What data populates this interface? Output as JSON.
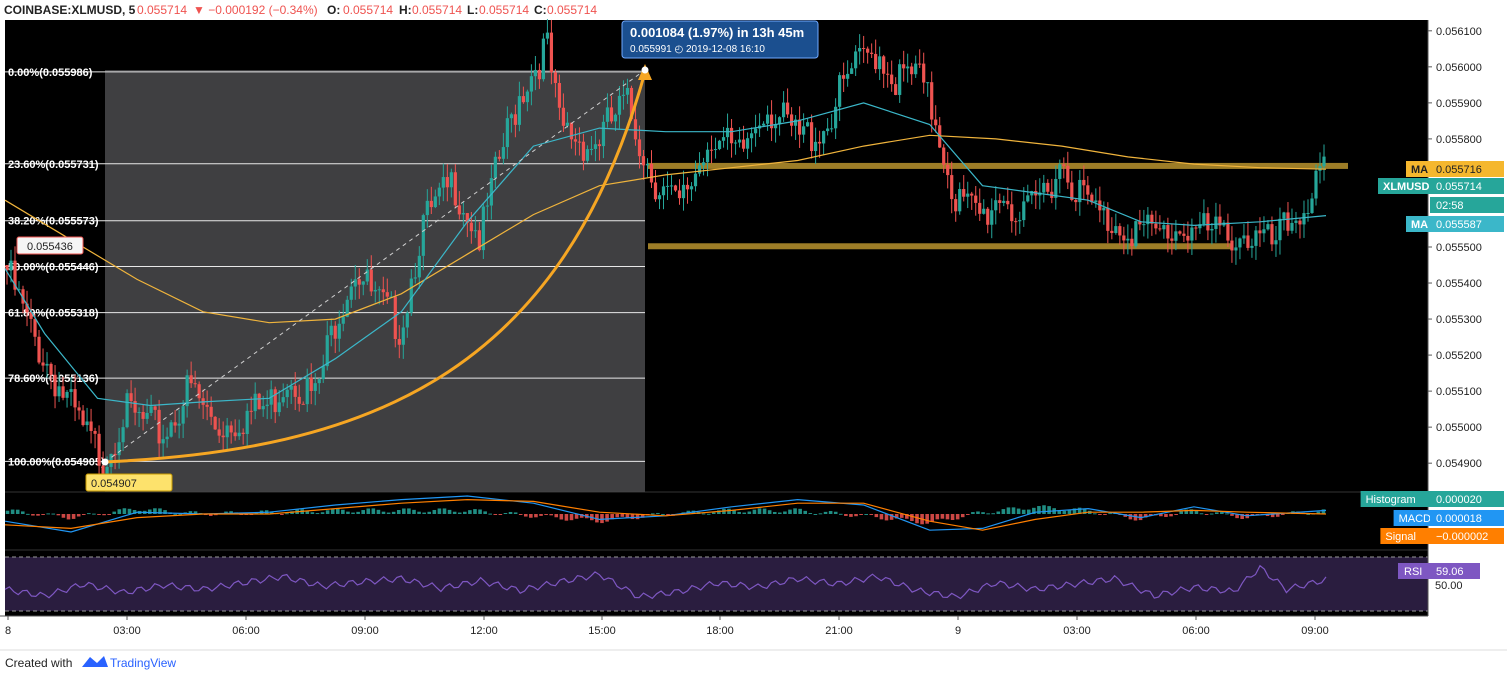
{
  "header": {
    "symbol": "COINBASE:XLMUSD, 5",
    "last": "0.055714",
    "change": "▼ −0.000192 (−0.34%)",
    "o_label": "O:",
    "o_val": "0.055714",
    "h_label": "H:",
    "h_val": "0.055714",
    "l_label": "L:",
    "l_val": "0.055714",
    "c_label": "C:",
    "c_val": "0.055714"
  },
  "footer": {
    "created_with": "Created with",
    "brand": "TradingView"
  },
  "colors": {
    "up": "#26a69a",
    "down": "#ef5350",
    "ma_slow": "#f0b43c",
    "ma_fast": "#3bb7c9",
    "fib_zone": "#4a4a4c",
    "bg": "#000000",
    "curve": "#f6a623",
    "support": "#b8932e",
    "rsi": "#7e57c2",
    "rsi_bg": "#2a1d3f",
    "macd": "#2196f3",
    "signal": "#ff7f00"
  },
  "chart_data": {
    "type": "candlestick",
    "price_range": [
      0.05482,
      0.05613
    ],
    "y_ticks": [
      "0.056100",
      "0.056000",
      "0.055900",
      "0.055800",
      "0.055500",
      "0.055400",
      "0.055300",
      "0.055200",
      "0.055100",
      "0.055000",
      "0.054900"
    ],
    "x_ticks": [
      "8",
      "03:00",
      "06:00",
      "09:00",
      "12:00",
      "15:00",
      "18:00",
      "21:00",
      "9",
      "03:00",
      "06:00",
      "09:00"
    ],
    "fib_levels": [
      {
        "label": "0.00%(0.055986)",
        "value": 0.055986
      },
      {
        "label": "23.60%(0.055731)",
        "value": 0.055731
      },
      {
        "label": "38.20%(0.055573)",
        "value": 0.055573
      },
      {
        "label": "50.00%(0.055446)",
        "value": 0.055446
      },
      {
        "label": "61.80%(0.055318)",
        "value": 0.055318
      },
      {
        "label": "78.60%(0.055136)",
        "value": 0.055136
      },
      {
        "label": "100.00%(0.054905)",
        "value": 0.054905
      }
    ],
    "support_lines": [
      0.055725,
      0.055502
    ],
    "price_path": [
      [
        0,
        0.05545
      ],
      [
        0.02,
        0.05526
      ],
      [
        0.04,
        0.05512
      ],
      [
        0.06,
        0.05498
      ],
      [
        0.075,
        0.05491
      ],
      [
        0.09,
        0.05504
      ],
      [
        0.12,
        0.05498
      ],
      [
        0.14,
        0.05511
      ],
      [
        0.16,
        0.055
      ],
      [
        0.18,
        0.05503
      ],
      [
        0.2,
        0.05506
      ],
      [
        0.215,
        0.05515
      ],
      [
        0.235,
        0.05508
      ],
      [
        0.25,
        0.0553
      ],
      [
        0.265,
        0.05545
      ],
      [
        0.28,
        0.05535
      ],
      [
        0.3,
        0.05528
      ],
      [
        0.315,
        0.05555
      ],
      [
        0.34,
        0.05568
      ],
      [
        0.36,
        0.05552
      ],
      [
        0.375,
        0.05575
      ],
      [
        0.39,
        0.05593
      ],
      [
        0.41,
        0.05606
      ],
      [
        0.42,
        0.05583
      ],
      [
        0.445,
        0.05578
      ],
      [
        0.47,
        0.0559
      ],
      [
        0.49,
        0.0557
      ],
      [
        0.51,
        0.0556
      ],
      [
        0.535,
        0.05582
      ],
      [
        0.555,
        0.05574
      ],
      [
        0.575,
        0.0559
      ],
      [
        0.6,
        0.0558
      ],
      [
        0.62,
        0.05583
      ],
      [
        0.64,
        0.05598
      ],
      [
        0.66,
        0.05605
      ],
      [
        0.675,
        0.05596
      ],
      [
        0.69,
        0.05598
      ],
      [
        0.705,
        0.05585
      ],
      [
        0.72,
        0.05563
      ],
      [
        0.74,
        0.05558
      ],
      [
        0.755,
        0.05566
      ],
      [
        0.77,
        0.05556
      ],
      [
        0.785,
        0.05565
      ],
      [
        0.8,
        0.05574
      ],
      [
        0.815,
        0.05564
      ],
      [
        0.83,
        0.05558
      ],
      [
        0.85,
        0.05556
      ],
      [
        0.87,
        0.05553
      ],
      [
        0.895,
        0.05556
      ],
      [
        0.915,
        0.05553
      ],
      [
        0.935,
        0.05554
      ],
      [
        0.96,
        0.0555
      ],
      [
        0.98,
        0.0556
      ],
      [
        1.0,
        0.05571
      ]
    ],
    "ma_slow_path": [
      [
        0,
        0.05563
      ],
      [
        0.05,
        0.05552
      ],
      [
        0.1,
        0.05541
      ],
      [
        0.15,
        0.05532
      ],
      [
        0.2,
        0.05529
      ],
      [
        0.25,
        0.0553
      ],
      [
        0.3,
        0.05537
      ],
      [
        0.35,
        0.05548
      ],
      [
        0.4,
        0.05559
      ],
      [
        0.45,
        0.05567
      ],
      [
        0.5,
        0.0557
      ],
      [
        0.55,
        0.05572
      ],
      [
        0.6,
        0.05574
      ],
      [
        0.65,
        0.05578
      ],
      [
        0.7,
        0.05581
      ],
      [
        0.75,
        0.0558
      ],
      [
        0.8,
        0.05578
      ],
      [
        0.85,
        0.05575
      ],
      [
        0.9,
        0.05573
      ],
      [
        0.95,
        0.05572
      ],
      [
        1.0,
        0.055716
      ]
    ],
    "ma_fast_path": [
      [
        0,
        0.05544
      ],
      [
        0.03,
        0.05526
      ],
      [
        0.07,
        0.05508
      ],
      [
        0.11,
        0.05506
      ],
      [
        0.15,
        0.05507
      ],
      [
        0.2,
        0.05508
      ],
      [
        0.25,
        0.05519
      ],
      [
        0.3,
        0.05532
      ],
      [
        0.35,
        0.05557
      ],
      [
        0.4,
        0.05578
      ],
      [
        0.45,
        0.05583
      ],
      [
        0.5,
        0.05582
      ],
      [
        0.55,
        0.05582
      ],
      [
        0.6,
        0.05585
      ],
      [
        0.65,
        0.0559
      ],
      [
        0.7,
        0.05584
      ],
      [
        0.74,
        0.05567
      ],
      [
        0.78,
        0.05565
      ],
      [
        0.82,
        0.05563
      ],
      [
        0.86,
        0.05557
      ],
      [
        0.9,
        0.05556
      ],
      [
        0.95,
        0.05557
      ],
      [
        1.0,
        0.055587
      ]
    ],
    "measure": {
      "text": "0.001084 (1.97%) in 13h 45m",
      "subtext": "0.055991 ◴ 2019-12-08  16:10"
    },
    "price_callouts": {
      "start": "0.055436",
      "low": "0.054907"
    },
    "axis_labels": [
      {
        "tag": "MA",
        "value": "0.055716"
      },
      {
        "tag": "XLMUSD",
        "value": "0.055714"
      },
      {
        "tag": "",
        "value": "02:58"
      },
      {
        "tag": "MA",
        "value": "0.055587"
      }
    ],
    "macd_labels": [
      {
        "tag": "Histogram",
        "value": "0.000020"
      },
      {
        "tag": "MACD",
        "value": "0.000018"
      },
      {
        "tag": "Signal",
        "value": "−0.000002"
      }
    ],
    "rsi_label": {
      "tag": "RSI",
      "value": "59.06"
    },
    "rsi_tick": "50.00",
    "rsi_path": [
      [
        0,
        50
      ],
      [
        0.03,
        44
      ],
      [
        0.06,
        55
      ],
      [
        0.09,
        47
      ],
      [
        0.12,
        54
      ],
      [
        0.15,
        50
      ],
      [
        0.18,
        56
      ],
      [
        0.21,
        62
      ],
      [
        0.24,
        53
      ],
      [
        0.27,
        57
      ],
      [
        0.3,
        60
      ],
      [
        0.33,
        51
      ],
      [
        0.36,
        58
      ],
      [
        0.39,
        49
      ],
      [
        0.42,
        57
      ],
      [
        0.45,
        64
      ],
      [
        0.48,
        43
      ],
      [
        0.51,
        48
      ],
      [
        0.54,
        56
      ],
      [
        0.57,
        52
      ],
      [
        0.6,
        60
      ],
      [
        0.63,
        55
      ],
      [
        0.66,
        62
      ],
      [
        0.69,
        49
      ],
      [
        0.72,
        43
      ],
      [
        0.75,
        56
      ],
      [
        0.78,
        50
      ],
      [
        0.81,
        55
      ],
      [
        0.84,
        60
      ],
      [
        0.87,
        44
      ],
      [
        0.9,
        52
      ],
      [
        0.93,
        48
      ],
      [
        0.95,
        70
      ],
      [
        0.97,
        50
      ],
      [
        1.0,
        59
      ]
    ],
    "macd_path": [
      [
        0,
        -0.4
      ],
      [
        0.05,
        -1.0
      ],
      [
        0.1,
        0.1
      ],
      [
        0.15,
        0.0
      ],
      [
        0.2,
        0.1
      ],
      [
        0.25,
        0.5
      ],
      [
        0.3,
        0.8
      ],
      [
        0.35,
        1.0
      ],
      [
        0.4,
        0.6
      ],
      [
        0.45,
        -0.3
      ],
      [
        0.5,
        -0.1
      ],
      [
        0.55,
        0.4
      ],
      [
        0.6,
        0.8
      ],
      [
        0.65,
        0.5
      ],
      [
        0.7,
        -0.9
      ],
      [
        0.74,
        -0.8
      ],
      [
        0.78,
        0.1
      ],
      [
        0.82,
        0.3
      ],
      [
        0.86,
        -0.2
      ],
      [
        0.9,
        0.4
      ],
      [
        0.94,
        -0.1
      ],
      [
        1.0,
        0.2
      ]
    ],
    "signal_path": [
      [
        0,
        -0.6
      ],
      [
        0.05,
        -0.8
      ],
      [
        0.1,
        -0.2
      ],
      [
        0.15,
        0.0
      ],
      [
        0.2,
        0.0
      ],
      [
        0.25,
        0.3
      ],
      [
        0.3,
        0.6
      ],
      [
        0.35,
        0.8
      ],
      [
        0.4,
        0.7
      ],
      [
        0.45,
        0.1
      ],
      [
        0.5,
        -0.1
      ],
      [
        0.55,
        0.2
      ],
      [
        0.6,
        0.6
      ],
      [
        0.65,
        0.6
      ],
      [
        0.7,
        -0.4
      ],
      [
        0.74,
        -0.9
      ],
      [
        0.78,
        -0.3
      ],
      [
        0.82,
        0.1
      ],
      [
        0.86,
        0.1
      ],
      [
        0.9,
        0.2
      ],
      [
        0.94,
        0.1
      ],
      [
        1.0,
        0.0
      ]
    ]
  }
}
